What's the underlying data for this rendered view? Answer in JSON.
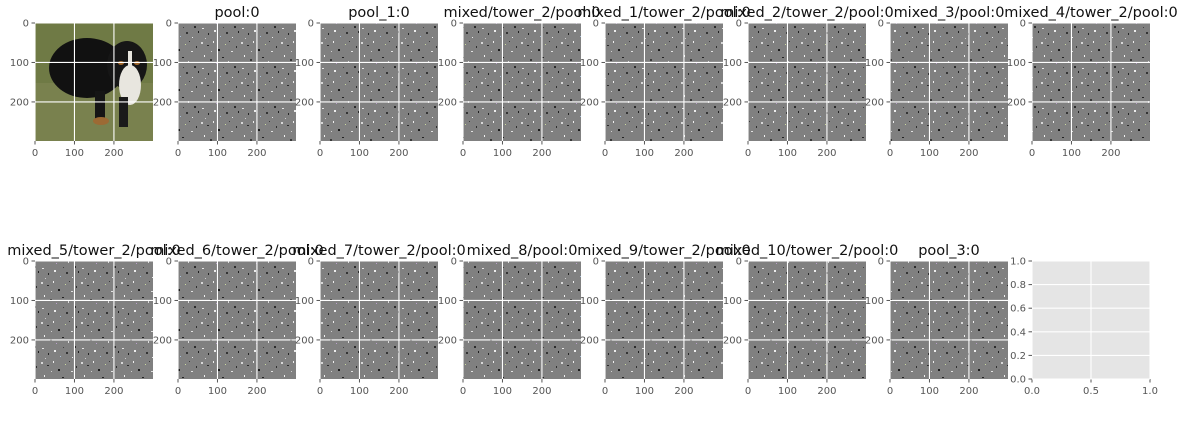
{
  "figure": {
    "background": "#ffffff",
    "axes_facecolor": "#e5e5e5",
    "grid_color": "#ffffff",
    "tick_color": "#555555",
    "title_color": "#111111",
    "noise_base": "#808080"
  },
  "chart_data": [
    {
      "type": "image",
      "title": "",
      "content": "dog-photo",
      "ylim": [
        299,
        0
      ],
      "xlim": [
        0,
        299
      ],
      "xticks": [
        "0",
        "100",
        "200"
      ],
      "yticks": [
        "0",
        "100",
        "200"
      ],
      "grid": true
    },
    {
      "type": "image",
      "title": "pool:0",
      "content": "gradient-noise",
      "xticks": [
        "0",
        "100",
        "200"
      ],
      "yticks": [
        "0",
        "100",
        "200"
      ],
      "grid": true
    },
    {
      "type": "image",
      "title": "pool_1:0",
      "content": "gradient-noise",
      "xticks": [
        "0",
        "100",
        "200"
      ],
      "yticks": [
        "0",
        "100",
        "200"
      ],
      "grid": true
    },
    {
      "type": "image",
      "title": "mixed/tower_2/pool:0",
      "content": "gradient-noise",
      "xticks": [
        "0",
        "100",
        "200"
      ],
      "yticks": [
        "0",
        "100",
        "200"
      ],
      "grid": true
    },
    {
      "type": "image",
      "title": "mixed_1/tower_2/pool:0",
      "content": "gradient-noise",
      "xticks": [
        "0",
        "100",
        "200"
      ],
      "yticks": [
        "0",
        "100",
        "200"
      ],
      "grid": true
    },
    {
      "type": "image",
      "title": "mixed_2/tower_2/pool:0",
      "content": "gradient-noise",
      "xticks": [
        "0",
        "100",
        "200"
      ],
      "yticks": [
        "0",
        "100",
        "200"
      ],
      "grid": true
    },
    {
      "type": "image",
      "title": "mixed_3/pool:0",
      "content": "gradient-noise",
      "xticks": [
        "0",
        "100",
        "200"
      ],
      "yticks": [
        "0",
        "100",
        "200"
      ],
      "grid": true
    },
    {
      "type": "image",
      "title": "mixed_4/tower_2/pool:0",
      "content": "gradient-noise",
      "xticks": [
        "0",
        "100",
        "200"
      ],
      "yticks": [
        "0",
        "100",
        "200"
      ],
      "grid": true
    },
    {
      "type": "image",
      "title": "mixed_5/tower_2/pool:0",
      "content": "gradient-noise",
      "xticks": [
        "0",
        "100",
        "200"
      ],
      "yticks": [
        "0",
        "100",
        "200"
      ],
      "grid": true
    },
    {
      "type": "image",
      "title": "mixed_6/tower_2/pool:0",
      "content": "gradient-noise",
      "xticks": [
        "0",
        "100",
        "200"
      ],
      "yticks": [
        "0",
        "100",
        "200"
      ],
      "grid": true
    },
    {
      "type": "image",
      "title": "mixed_7/tower_2/pool:0",
      "content": "gradient-noise",
      "xticks": [
        "0",
        "100",
        "200"
      ],
      "yticks": [
        "0",
        "100",
        "200"
      ],
      "grid": true
    },
    {
      "type": "image",
      "title": "mixed_8/pool:0",
      "content": "gradient-noise",
      "xticks": [
        "0",
        "100",
        "200"
      ],
      "yticks": [
        "0",
        "100",
        "200"
      ],
      "grid": true
    },
    {
      "type": "image",
      "title": "mixed_9/tower_2/pool:0",
      "content": "gradient-noise",
      "xticks": [
        "0",
        "100",
        "200"
      ],
      "yticks": [
        "0",
        "100",
        "200"
      ],
      "grid": true
    },
    {
      "type": "image",
      "title": "mixed_10/tower_2/pool:0",
      "content": "gradient-noise",
      "xticks": [
        "0",
        "100",
        "200"
      ],
      "yticks": [
        "0",
        "100",
        "200"
      ],
      "grid": true
    },
    {
      "type": "image",
      "title": "pool_3:0",
      "content": "gradient-noise",
      "xticks": [
        "0",
        "100",
        "200"
      ],
      "yticks": [
        "0",
        "100",
        "200"
      ],
      "grid": true
    },
    {
      "type": "empty",
      "title": "",
      "xlim": [
        0.0,
        1.0
      ],
      "ylim": [
        0.0,
        1.0
      ],
      "xticks": [
        "0.0",
        "0.5",
        "1.0"
      ],
      "yticks": [
        "0.0",
        "0.2",
        "0.4",
        "0.6",
        "0.8",
        "1.0"
      ],
      "grid": true
    }
  ]
}
